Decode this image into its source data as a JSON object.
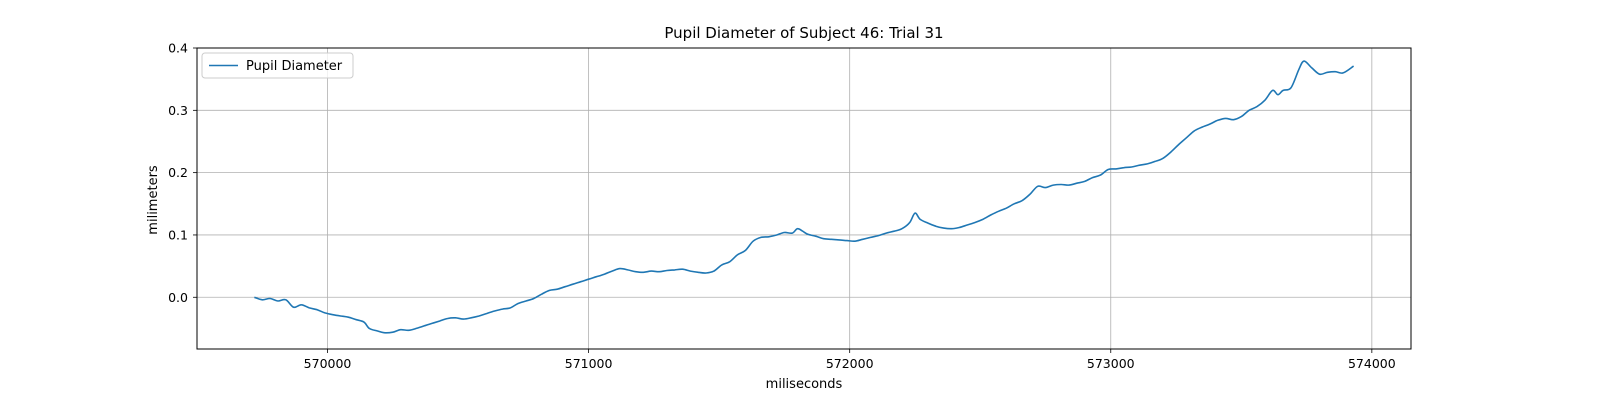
{
  "chart_data": {
    "type": "line",
    "title": "Pupil Diameter of Subject 46: Trial 31",
    "xlabel": "miliseconds",
    "ylabel": "milimeters",
    "xlim": [
      569500,
      574150
    ],
    "ylim": [
      -0.083,
      0.4
    ],
    "xticks": [
      570000,
      571000,
      572000,
      573000,
      574000
    ],
    "yticks": [
      0.0,
      0.1,
      0.2,
      0.3,
      0.4
    ],
    "ytick_labels": [
      "0.0",
      "0.1",
      "0.2",
      "0.3",
      "0.4"
    ],
    "grid": true,
    "legend_position": "upper-left",
    "series": [
      {
        "name": "Pupil Diameter",
        "color": "#1f77b4",
        "points": [
          [
            569720,
            0.0
          ],
          [
            569750,
            -0.004
          ],
          [
            569780,
            -0.002
          ],
          [
            569810,
            -0.006
          ],
          [
            569840,
            -0.004
          ],
          [
            569870,
            -0.016
          ],
          [
            569900,
            -0.012
          ],
          [
            569930,
            -0.017
          ],
          [
            569960,
            -0.02
          ],
          [
            569990,
            -0.025
          ],
          [
            570020,
            -0.028
          ],
          [
            570050,
            -0.03
          ],
          [
            570080,
            -0.032
          ],
          [
            570110,
            -0.036
          ],
          [
            570140,
            -0.04
          ],
          [
            570160,
            -0.05
          ],
          [
            570190,
            -0.054
          ],
          [
            570220,
            -0.057
          ],
          [
            570250,
            -0.056
          ],
          [
            570280,
            -0.052
          ],
          [
            570310,
            -0.053
          ],
          [
            570340,
            -0.05
          ],
          [
            570370,
            -0.046
          ],
          [
            570400,
            -0.042
          ],
          [
            570430,
            -0.038
          ],
          [
            570460,
            -0.034
          ],
          [
            570490,
            -0.033
          ],
          [
            570520,
            -0.035
          ],
          [
            570550,
            -0.033
          ],
          [
            570580,
            -0.03
          ],
          [
            570610,
            -0.026
          ],
          [
            570640,
            -0.022
          ],
          [
            570670,
            -0.019
          ],
          [
            570700,
            -0.017
          ],
          [
            570730,
            -0.01
          ],
          [
            570760,
            -0.006
          ],
          [
            570790,
            -0.002
          ],
          [
            570820,
            0.005
          ],
          [
            570850,
            0.011
          ],
          [
            570880,
            0.013
          ],
          [
            570910,
            0.017
          ],
          [
            570940,
            0.021
          ],
          [
            570970,
            0.025
          ],
          [
            571000,
            0.029
          ],
          [
            571030,
            0.033
          ],
          [
            571060,
            0.037
          ],
          [
            571090,
            0.042
          ],
          [
            571120,
            0.046
          ],
          [
            571150,
            0.044
          ],
          [
            571180,
            0.041
          ],
          [
            571210,
            0.04
          ],
          [
            571240,
            0.042
          ],
          [
            571270,
            0.041
          ],
          [
            571300,
            0.043
          ],
          [
            571330,
            0.044
          ],
          [
            571360,
            0.045
          ],
          [
            571390,
            0.042
          ],
          [
            571420,
            0.04
          ],
          [
            571450,
            0.039
          ],
          [
            571480,
            0.042
          ],
          [
            571510,
            0.052
          ],
          [
            571540,
            0.057
          ],
          [
            571570,
            0.068
          ],
          [
            571600,
            0.075
          ],
          [
            571630,
            0.09
          ],
          [
            571660,
            0.096
          ],
          [
            571690,
            0.097
          ],
          [
            571720,
            0.1
          ],
          [
            571750,
            0.104
          ],
          [
            571780,
            0.103
          ],
          [
            571800,
            0.11
          ],
          [
            571820,
            0.106
          ],
          [
            571840,
            0.101
          ],
          [
            571870,
            0.098
          ],
          [
            571900,
            0.094
          ],
          [
            571930,
            0.093
          ],
          [
            571960,
            0.092
          ],
          [
            571990,
            0.091
          ],
          [
            572020,
            0.09
          ],
          [
            572050,
            0.093
          ],
          [
            572080,
            0.096
          ],
          [
            572110,
            0.099
          ],
          [
            572140,
            0.103
          ],
          [
            572170,
            0.106
          ],
          [
            572200,
            0.11
          ],
          [
            572230,
            0.12
          ],
          [
            572250,
            0.135
          ],
          [
            572270,
            0.125
          ],
          [
            572300,
            0.119
          ],
          [
            572330,
            0.114
          ],
          [
            572360,
            0.111
          ],
          [
            572390,
            0.11
          ],
          [
            572420,
            0.112
          ],
          [
            572450,
            0.116
          ],
          [
            572480,
            0.12
          ],
          [
            572510,
            0.125
          ],
          [
            572540,
            0.132
          ],
          [
            572570,
            0.138
          ],
          [
            572600,
            0.143
          ],
          [
            572630,
            0.15
          ],
          [
            572660,
            0.155
          ],
          [
            572690,
            0.165
          ],
          [
            572720,
            0.178
          ],
          [
            572750,
            0.176
          ],
          [
            572780,
            0.18
          ],
          [
            572810,
            0.181
          ],
          [
            572840,
            0.18
          ],
          [
            572870,
            0.183
          ],
          [
            572900,
            0.186
          ],
          [
            572930,
            0.192
          ],
          [
            572960,
            0.196
          ],
          [
            572990,
            0.205
          ],
          [
            573020,
            0.206
          ],
          [
            573050,
            0.208
          ],
          [
            573080,
            0.209
          ],
          [
            573110,
            0.212
          ],
          [
            573140,
            0.214
          ],
          [
            573170,
            0.218
          ],
          [
            573200,
            0.223
          ],
          [
            573230,
            0.233
          ],
          [
            573260,
            0.245
          ],
          [
            573290,
            0.256
          ],
          [
            573320,
            0.267
          ],
          [
            573350,
            0.273
          ],
          [
            573380,
            0.278
          ],
          [
            573410,
            0.284
          ],
          [
            573440,
            0.287
          ],
          [
            573470,
            0.285
          ],
          [
            573500,
            0.29
          ],
          [
            573530,
            0.3
          ],
          [
            573560,
            0.306
          ],
          [
            573590,
            0.316
          ],
          [
            573620,
            0.332
          ],
          [
            573640,
            0.325
          ],
          [
            573660,
            0.332
          ],
          [
            573690,
            0.336
          ],
          [
            573720,
            0.365
          ],
          [
            573740,
            0.379
          ],
          [
            573770,
            0.368
          ],
          [
            573800,
            0.358
          ],
          [
            573830,
            0.361
          ],
          [
            573860,
            0.362
          ],
          [
            573890,
            0.36
          ],
          [
            573930,
            0.371
          ]
        ]
      }
    ]
  }
}
